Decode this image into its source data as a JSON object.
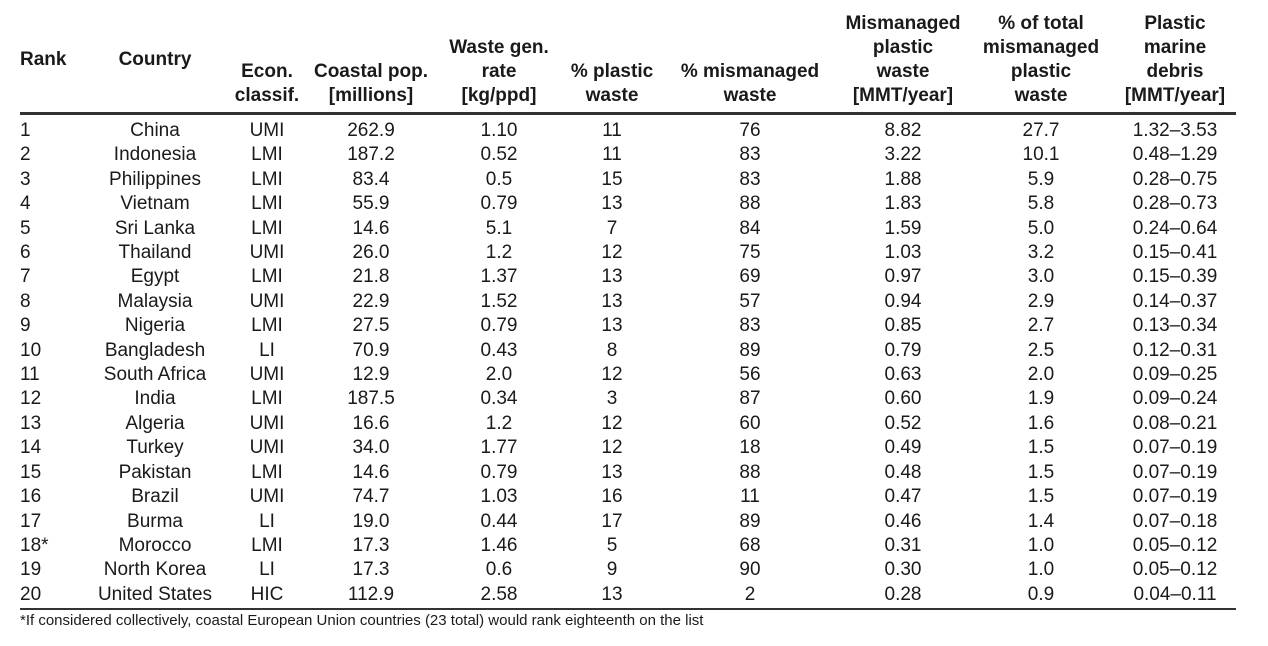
{
  "table": {
    "headers": [
      {
        "key": "rank",
        "label": "Rank"
      },
      {
        "key": "country",
        "label": "Country"
      },
      {
        "key": "econ",
        "label": "Econ.\nclassif."
      },
      {
        "key": "coastal_pop",
        "label": "Coastal pop.\n[millions]"
      },
      {
        "key": "waste_gen",
        "label": "Waste gen.\nrate\n[kg/ppd]"
      },
      {
        "key": "plastic_waste",
        "label": "% plastic\nwaste"
      },
      {
        "key": "mismanaged_waste",
        "label": "% mismanaged\nwaste"
      },
      {
        "key": "mismanaged_plastic",
        "label": "Mismanaged\nplastic\nwaste\n[MMT/year]"
      },
      {
        "key": "pct_total",
        "label": "% of total\nmismanaged\nplastic\nwaste"
      },
      {
        "key": "marine_debris",
        "label": "Plastic\nmarine\ndebris\n[MMT/year]"
      }
    ],
    "rows": [
      [
        "1",
        "China",
        "UMI",
        "262.9",
        "1.10",
        "11",
        "76",
        "8.82",
        "27.7",
        "1.32–3.53"
      ],
      [
        "2",
        "Indonesia",
        "LMI",
        "187.2",
        "0.52",
        "11",
        "83",
        "3.22",
        "10.1",
        "0.48–1.29"
      ],
      [
        "3",
        "Philippines",
        "LMI",
        "83.4",
        "0.5",
        "15",
        "83",
        "1.88",
        "5.9",
        "0.28–0.75"
      ],
      [
        "4",
        "Vietnam",
        "LMI",
        "55.9",
        "0.79",
        "13",
        "88",
        "1.83",
        "5.8",
        "0.28–0.73"
      ],
      [
        "5",
        "Sri Lanka",
        "LMI",
        "14.6",
        "5.1",
        "7",
        "84",
        "1.59",
        "5.0",
        "0.24–0.64"
      ],
      [
        "6",
        "Thailand",
        "UMI",
        "26.0",
        "1.2",
        "12",
        "75",
        "1.03",
        "3.2",
        "0.15–0.41"
      ],
      [
        "7",
        "Egypt",
        "LMI",
        "21.8",
        "1.37",
        "13",
        "69",
        "0.97",
        "3.0",
        "0.15–0.39"
      ],
      [
        "8",
        "Malaysia",
        "UMI",
        "22.9",
        "1.52",
        "13",
        "57",
        "0.94",
        "2.9",
        "0.14–0.37"
      ],
      [
        "9",
        "Nigeria",
        "LMI",
        "27.5",
        "0.79",
        "13",
        "83",
        "0.85",
        "2.7",
        "0.13–0.34"
      ],
      [
        "10",
        "Bangladesh",
        "LI",
        "70.9",
        "0.43",
        "8",
        "89",
        "0.79",
        "2.5",
        "0.12–0.31"
      ],
      [
        "11",
        "South Africa",
        "UMI",
        "12.9",
        "2.0",
        "12",
        "56",
        "0.63",
        "2.0",
        "0.09–0.25"
      ],
      [
        "12",
        "India",
        "LMI",
        "187.5",
        "0.34",
        "3",
        "87",
        "0.60",
        "1.9",
        "0.09–0.24"
      ],
      [
        "13",
        "Algeria",
        "UMI",
        "16.6",
        "1.2",
        "12",
        "60",
        "0.52",
        "1.6",
        "0.08–0.21"
      ],
      [
        "14",
        "Turkey",
        "UMI",
        "34.0",
        "1.77",
        "12",
        "18",
        "0.49",
        "1.5",
        "0.07–0.19"
      ],
      [
        "15",
        "Pakistan",
        "LMI",
        "14.6",
        "0.79",
        "13",
        "88",
        "0.48",
        "1.5",
        "0.07–0.19"
      ],
      [
        "16",
        "Brazil",
        "UMI",
        "74.7",
        "1.03",
        "16",
        "11",
        "0.47",
        "1.5",
        "0.07–0.19"
      ],
      [
        "17",
        "Burma",
        "LI",
        "19.0",
        "0.44",
        "17",
        "89",
        "0.46",
        "1.4",
        "0.07–0.18"
      ],
      [
        "18*",
        "Morocco",
        "LMI",
        "17.3",
        "1.46",
        "5",
        "68",
        "0.31",
        "1.0",
        "0.05–0.12"
      ],
      [
        "19",
        "North Korea",
        "LI",
        "17.3",
        "0.6",
        "9",
        "90",
        "0.30",
        "1.0",
        "0.05–0.12"
      ],
      [
        "20",
        "United States",
        "HIC",
        "112.9",
        "2.58",
        "13",
        "2",
        "0.28",
        "0.9",
        "0.04–0.11"
      ]
    ]
  },
  "footnote": "*If considered collectively, coastal European Union countries (23 total) would rank eighteenth on the list"
}
